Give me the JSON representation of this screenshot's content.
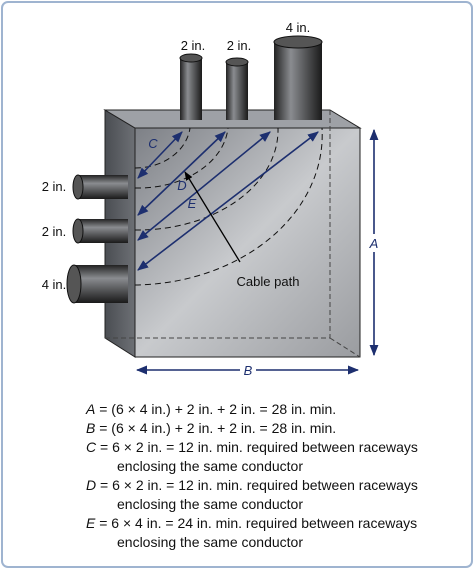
{
  "top_conduits": [
    "2 in.",
    "2 in.",
    "4 in."
  ],
  "side_conduits": [
    "2 in.",
    "2 in.",
    "4 in."
  ],
  "dimensions": {
    "a": "A",
    "b": "B",
    "c": "C",
    "d": "D",
    "e": "E"
  },
  "cable_path": "Cable path",
  "equations": [
    {
      "letter": "A",
      "text": " = (6 × 4 in.) + 2 in. + 2 in. = 28 in. min."
    },
    {
      "letter": "B",
      "text": " = (6 × 4 in.) + 2 in. + 2 in. = 28 in. min."
    },
    {
      "letter": "C",
      "text": " = 6 × 2 in. = 12 in. min. required between raceways",
      "continuation": "enclosing the same conductor"
    },
    {
      "letter": "D",
      "text": " = 6 × 2 in. = 12 in. min. required between raceways",
      "continuation": "enclosing the same conductor"
    },
    {
      "letter": "E",
      "text": " = 6 × 4 in. = 24 in. min. required between raceways",
      "continuation": "enclosing the same conductor"
    }
  ]
}
